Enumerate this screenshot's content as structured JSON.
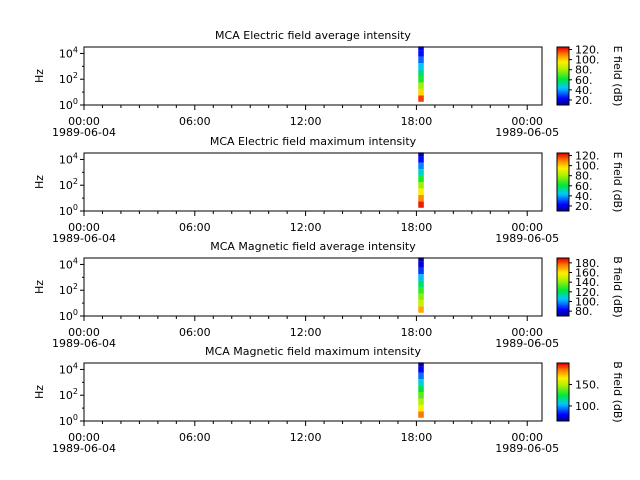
{
  "figure": {
    "x_start": "1989-06-04",
    "x_end": "1989-06-05"
  },
  "chart_data": [
    {
      "type": "heatmap",
      "title": "MCA  Electric field average intensity",
      "ylabel": "Hz",
      "colorbar_label": "E field (dB)",
      "colorbar_ticks": [
        "20.",
        "40.",
        "60.",
        "80.",
        "100.",
        "120."
      ],
      "colorbar_range": [
        10,
        125
      ],
      "x_tick_labels": [
        "00:00",
        "06:00",
        "12:00",
        "18:00",
        "00:00"
      ],
      "x_date_labels": [
        "1989-06-04",
        "1989-06-05"
      ],
      "x_range_hours": [
        0,
        24.8
      ],
      "y_tick_exponents": [
        "0",
        "2",
        "4"
      ],
      "y_range_log10": [
        0,
        4.5
      ],
      "data_window_hours": [
        18.1,
        18.4
      ],
      "profile": [
        {
          "log10_hz": 0.5,
          "value": 118
        },
        {
          "log10_hz": 1.0,
          "value": 100
        },
        {
          "log10_hz": 1.5,
          "value": 80
        },
        {
          "log10_hz": 2.0,
          "value": 65
        },
        {
          "log10_hz": 2.5,
          "value": 55
        },
        {
          "log10_hz": 3.0,
          "value": 45
        },
        {
          "log10_hz": 3.5,
          "value": 35
        },
        {
          "log10_hz": 4.0,
          "value": 25
        },
        {
          "log10_hz": 4.4,
          "value": 20
        }
      ]
    },
    {
      "type": "heatmap",
      "title": "MCA  Electric field maximum intensity",
      "ylabel": "Hz",
      "colorbar_label": "E field (dB)",
      "colorbar_ticks": [
        "20.",
        "40.",
        "60.",
        "80.",
        "100.",
        "120."
      ],
      "colorbar_range": [
        10,
        125
      ],
      "x_tick_labels": [
        "00:00",
        "06:00",
        "12:00",
        "18:00",
        "00:00"
      ],
      "x_date_labels": [
        "1989-06-04",
        "1989-06-05"
      ],
      "x_range_hours": [
        0,
        24.8
      ],
      "y_tick_exponents": [
        "0",
        "2",
        "4"
      ],
      "y_range_log10": [
        0,
        4.5
      ],
      "data_window_hours": [
        18.1,
        18.4
      ],
      "profile": [
        {
          "log10_hz": 0.5,
          "value": 122
        },
        {
          "log10_hz": 1.0,
          "value": 110
        },
        {
          "log10_hz": 1.5,
          "value": 95
        },
        {
          "log10_hz": 2.0,
          "value": 80
        },
        {
          "log10_hz": 2.5,
          "value": 65
        },
        {
          "log10_hz": 3.0,
          "value": 50
        },
        {
          "log10_hz": 3.5,
          "value": 38
        },
        {
          "log10_hz": 4.0,
          "value": 25
        },
        {
          "log10_hz": 4.4,
          "value": 15
        }
      ]
    },
    {
      "type": "heatmap",
      "title": "MCA  Magnetic field average intensity",
      "ylabel": "Hz",
      "colorbar_label": "B field (dB)",
      "colorbar_ticks": [
        "80.",
        "100.",
        "120.",
        "140.",
        "160.",
        "180."
      ],
      "colorbar_range": [
        70,
        190
      ],
      "x_tick_labels": [
        "00:00",
        "06:00",
        "12:00",
        "18:00",
        "00:00"
      ],
      "x_date_labels": [
        "1989-06-04",
        "1989-06-05"
      ],
      "x_range_hours": [
        0,
        24.8
      ],
      "y_tick_exponents": [
        "0",
        "2",
        "4"
      ],
      "y_range_log10": [
        0,
        4.5
      ],
      "data_window_hours": [
        18.1,
        18.4
      ],
      "profile": [
        {
          "log10_hz": 0.5,
          "value": 170
        },
        {
          "log10_hz": 1.0,
          "value": 150
        },
        {
          "log10_hz": 1.5,
          "value": 140
        },
        {
          "log10_hz": 2.0,
          "value": 130
        },
        {
          "log10_hz": 2.5,
          "value": 120
        },
        {
          "log10_hz": 3.0,
          "value": 105
        },
        {
          "log10_hz": 3.5,
          "value": 90
        },
        {
          "log10_hz": 4.0,
          "value": 80
        },
        {
          "log10_hz": 4.4,
          "value": 75
        }
      ]
    },
    {
      "type": "heatmap",
      "title": "MCA  Magnetic field maximum intensity",
      "ylabel": "Hz",
      "colorbar_label": "B field (dB)",
      "colorbar_ticks": [
        "100.",
        "150."
      ],
      "colorbar_range": [
        65,
        200
      ],
      "x_tick_labels": [
        "00:00",
        "06:00",
        "12:00",
        "18:00",
        "00:00"
      ],
      "x_date_labels": [
        "1989-06-04",
        "1989-06-05"
      ],
      "x_range_hours": [
        0,
        24.8
      ],
      "y_tick_exponents": [
        "0",
        "2",
        "4"
      ],
      "y_range_log10": [
        0,
        4.5
      ],
      "data_window_hours": [
        18.1,
        18.4
      ],
      "profile": [
        {
          "log10_hz": 0.5,
          "value": 185
        },
        {
          "log10_hz": 1.0,
          "value": 165
        },
        {
          "log10_hz": 1.5,
          "value": 150
        },
        {
          "log10_hz": 2.0,
          "value": 138
        },
        {
          "log10_hz": 2.5,
          "value": 125
        },
        {
          "log10_hz": 3.0,
          "value": 110
        },
        {
          "log10_hz": 3.5,
          "value": 95
        },
        {
          "log10_hz": 4.0,
          "value": 80
        },
        {
          "log10_hz": 4.4,
          "value": 72
        }
      ]
    }
  ]
}
